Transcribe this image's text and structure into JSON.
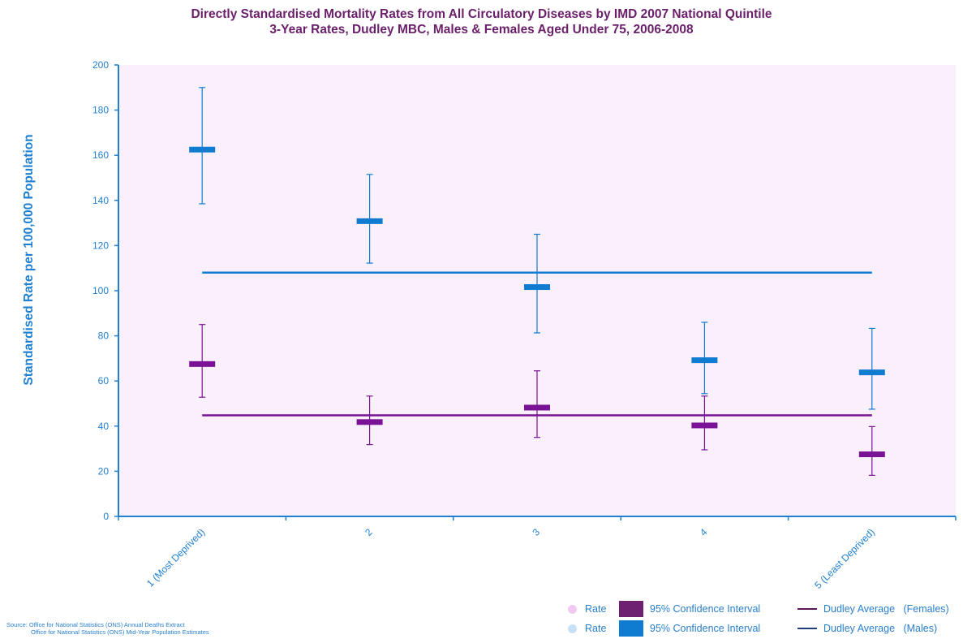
{
  "chart_data": {
    "type": "scatter",
    "title_line1": "Directly Standardised Mortality Rates from All Circulatory Diseases by IMD 2007 National Quintile",
    "title_line2": "3-Year Rates, Dudley MBC, Males & Females Aged Under 75, 2006-2008",
    "ylabel": "Standardised Rate per 100,000 Population",
    "xlabel": "",
    "ylim": [
      0,
      200
    ],
    "yticks": [
      0,
      20,
      40,
      60,
      80,
      100,
      120,
      140,
      160,
      180,
      200
    ],
    "categories": [
      "1 (Most Deprived)",
      "2",
      "3",
      "4",
      "5 (Least Deprived)"
    ],
    "series": [
      {
        "name": "Males",
        "color": "#0f7bd1",
        "rate": [
          162.5,
          130.8,
          101.6,
          69.2,
          63.8
        ],
        "ci_low": [
          138.5,
          112.2,
          81.3,
          54.4,
          47.5
        ],
        "ci_high": [
          190.0,
          151.5,
          125.0,
          86.0,
          83.3
        ],
        "average": 108.0
      },
      {
        "name": "Females",
        "color": "#7a1296",
        "rate": [
          67.5,
          41.8,
          48.2,
          40.3,
          27.5
        ],
        "ci_low": [
          52.8,
          31.8,
          35.0,
          29.5,
          18.2
        ],
        "ci_high": [
          85.0,
          53.3,
          64.5,
          53.3,
          39.8
        ],
        "average": 44.8
      }
    ],
    "grid": false,
    "plot_background": "#faf0fb",
    "axis_color": "#1f7fd0",
    "legend_position": "bottom-right"
  },
  "legend": {
    "rate_label": "Rate",
    "ci_label": "95% Confidence Interval",
    "avg_female_label": "Dudley Average   (Females)",
    "avg_male_label": "Dudley Average   (Males)",
    "rate_female_color": "#f2c8f2",
    "ci_female_color": "#6e2170",
    "avg_female_color": "#5a1a5a",
    "rate_male_color": "#c8e0f5",
    "ci_male_color": "#0f7bd1",
    "avg_male_color": "#1f3f7a"
  },
  "source": {
    "line1": "Source:  Office for National Statistics (ONS) Annual Deaths Extract",
    "line2": "Office for National Statistics (ONS) Mid-Year Population Estimates"
  }
}
